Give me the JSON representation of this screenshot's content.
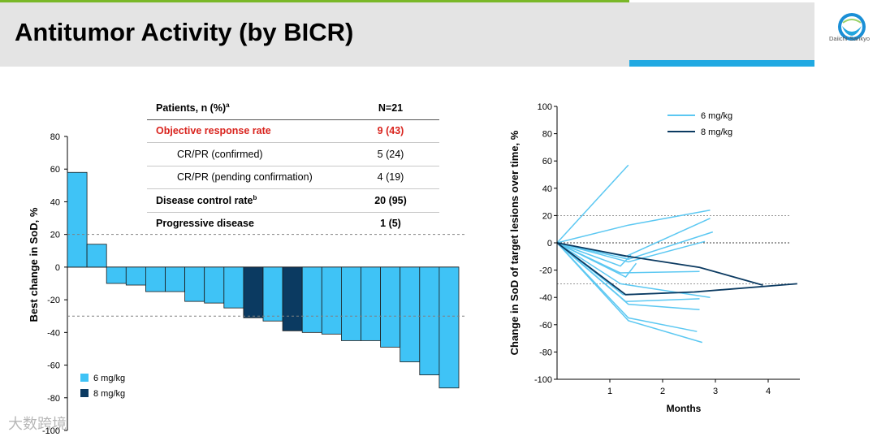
{
  "header": {
    "title": "Antitumor Activity (by BICR)",
    "logo_text": "Daiichi-Sankyo",
    "colors": {
      "accent_green": "#7ab828",
      "accent_blue": "#21a9e2",
      "band": "#e4e4e4"
    }
  },
  "table": {
    "header": {
      "label": "Patients, n (%)",
      "sup": "a",
      "value": "N=21"
    },
    "rows": [
      {
        "label": "Objective response rate",
        "sup": "",
        "value": "9 (43)"
      },
      {
        "label": "CR/PR (confirmed)",
        "sup": "",
        "value": "5 (24)"
      },
      {
        "label": "CR/PR (pending confirmation)",
        "sup": "",
        "value": "4 (19)"
      },
      {
        "label": "Disease control rate",
        "sup": "b",
        "value": "20 (95)"
      },
      {
        "label": "Progressive disease",
        "sup": "",
        "value": "1 (5)"
      }
    ]
  },
  "watermark": "大数跨境",
  "chart_data": [
    {
      "type": "bar",
      "title": "",
      "xlabel": "",
      "ylabel": "Best change in SoD, %",
      "ylim": [
        -100,
        80
      ],
      "yticks": [
        80,
        60,
        40,
        20,
        0,
        -20,
        -40,
        -60,
        -80,
        -100
      ],
      "reference_lines": [
        20,
        -30
      ],
      "grid": false,
      "legend": {
        "position": "bottom-left",
        "entries": [
          "6 mg/kg",
          "8 mg/kg"
        ]
      },
      "colors": {
        "6 mg/kg": "#3fc3f6",
        "8 mg/kg": "#0b3a61"
      },
      "values": [
        58,
        14,
        -10,
        -11,
        -15,
        -15,
        -21,
        -22,
        -25,
        -31,
        -33,
        -39,
        -40,
        -41,
        -45,
        -45,
        -49,
        -58,
        -66,
        -74
      ],
      "dose": [
        "6 mg/kg",
        "6 mg/kg",
        "6 mg/kg",
        "6 mg/kg",
        "6 mg/kg",
        "6 mg/kg",
        "6 mg/kg",
        "6 mg/kg",
        "6 mg/kg",
        "8 mg/kg",
        "6 mg/kg",
        "8 mg/kg",
        "6 mg/kg",
        "6 mg/kg",
        "6 mg/kg",
        "6 mg/kg",
        "6 mg/kg",
        "6 mg/kg",
        "6 mg/kg",
        "6 mg/kg"
      ]
    },
    {
      "type": "line",
      "title": "",
      "xlabel": "Months",
      "ylabel": "Change in SoD of target lesions over time, %",
      "xlim": [
        0,
        4.6
      ],
      "ylim": [
        -100,
        100
      ],
      "xticks": [
        1,
        2,
        3,
        4
      ],
      "yticks": [
        100,
        80,
        60,
        40,
        20,
        0,
        -20,
        -40,
        -60,
        -80,
        -100
      ],
      "reference_lines": [
        20,
        0,
        -30
      ],
      "grid": false,
      "legend": {
        "position": "top-right",
        "entries": [
          "6 mg/kg",
          "8 mg/kg"
        ]
      },
      "series": [
        {
          "name": "6 mg/kg",
          "color": "#5cc8f2",
          "points": [
            [
              0,
              0
            ],
            [
              1.35,
              57
            ]
          ]
        },
        {
          "name": "6 mg/kg",
          "color": "#5cc8f2",
          "points": [
            [
              0,
              0
            ],
            [
              1.35,
              13
            ],
            [
              2.9,
              24
            ]
          ]
        },
        {
          "name": "6 mg/kg",
          "color": "#5cc8f2",
          "points": [
            [
              0,
              0
            ],
            [
              1.3,
              -10
            ],
            [
              2.9,
              18
            ]
          ]
        },
        {
          "name": "6 mg/kg",
          "color": "#5cc8f2",
          "points": [
            [
              0,
              0
            ],
            [
              1.35,
              -12
            ],
            [
              2.95,
              8
            ]
          ]
        },
        {
          "name": "6 mg/kg",
          "color": "#5cc8f2",
          "points": [
            [
              0,
              0
            ],
            [
              1.35,
              -14
            ],
            [
              2.8,
              1
            ]
          ]
        },
        {
          "name": "6 mg/kg",
          "color": "#5cc8f2",
          "points": [
            [
              0,
              0
            ],
            [
              1.2,
              -17
            ],
            [
              1.4,
              -9
            ]
          ]
        },
        {
          "name": "6 mg/kg",
          "color": "#5cc8f2",
          "points": [
            [
              0,
              0
            ],
            [
              1.2,
              -22
            ],
            [
              2.7,
              -21
            ]
          ]
        },
        {
          "name": "6 mg/kg",
          "color": "#5cc8f2",
          "points": [
            [
              0,
              0
            ],
            [
              1.3,
              -25
            ],
            [
              1.5,
              -15
            ]
          ]
        },
        {
          "name": "6 mg/kg",
          "color": "#5cc8f2",
          "points": [
            [
              0,
              0
            ],
            [
              1.2,
              -30
            ],
            [
              2.9,
              -40
            ]
          ]
        },
        {
          "name": "6 mg/kg",
          "color": "#5cc8f2",
          "points": [
            [
              0,
              0
            ],
            [
              1.25,
              -38
            ],
            [
              2.7,
              -36
            ]
          ]
        },
        {
          "name": "6 mg/kg",
          "color": "#5cc8f2",
          "points": [
            [
              0,
              0
            ],
            [
              1.3,
              -43
            ],
            [
              2.7,
              -41
            ]
          ]
        },
        {
          "name": "6 mg/kg",
          "color": "#5cc8f2",
          "points": [
            [
              0,
              0
            ],
            [
              1.35,
              -45
            ],
            [
              2.7,
              -49
            ]
          ]
        },
        {
          "name": "6 mg/kg",
          "color": "#5cc8f2",
          "points": [
            [
              0,
              0
            ],
            [
              1.35,
              -55
            ],
            [
              2.65,
              -65
            ]
          ]
        },
        {
          "name": "6 mg/kg",
          "color": "#5cc8f2",
          "points": [
            [
              0,
              0
            ],
            [
              1.35,
              -57
            ],
            [
              2.75,
              -73
            ]
          ]
        },
        {
          "name": "8 mg/kg",
          "color": "#0b3a61",
          "points": [
            [
              0,
              0
            ],
            [
              1.35,
              -10
            ],
            [
              2.7,
              -18
            ],
            [
              3.9,
              -31
            ]
          ]
        },
        {
          "name": "8 mg/kg",
          "color": "#0b3a61",
          "points": [
            [
              0,
              0
            ],
            [
              1.3,
              -38
            ],
            [
              2.6,
              -36
            ],
            [
              4.55,
              -30
            ]
          ]
        }
      ]
    }
  ]
}
